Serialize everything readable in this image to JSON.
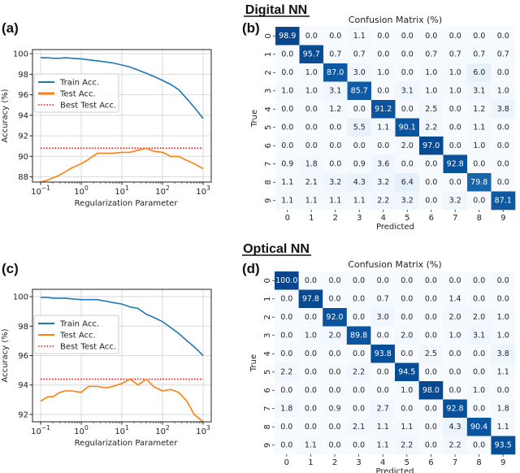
{
  "sections": [
    {
      "title": "Digital NN"
    },
    {
      "title": "Optical NN"
    }
  ],
  "chart_data": [
    {
      "panel": "(a)",
      "type": "line",
      "xscale": "log",
      "xlabel": "Regularization Parameter",
      "ylabel": "Accuracy (%)",
      "xlim": [
        0.1,
        1000
      ],
      "ylim": [
        87.5,
        100.4
      ],
      "xticks": [
        "10^-1",
        "10^0",
        "10^1",
        "10^2",
        "10^3"
      ],
      "yticks": [
        88,
        90,
        92,
        94,
        96,
        98,
        100
      ],
      "grid": true,
      "legend": "upper-left",
      "colors": {
        "train": "#1f77b4",
        "test": "#ff7f0e",
        "best": "#ff0000"
      },
      "x": [
        0.1,
        0.15,
        0.2,
        0.3,
        0.4,
        0.6,
        1,
        1.5,
        2.5,
        4,
        6,
        10,
        16,
        25,
        40,
        60,
        100,
        160,
        250,
        400,
        600,
        1000
      ],
      "series": [
        {
          "name": "Train Acc.",
          "values": [
            99.6,
            99.6,
            99.55,
            99.55,
            99.6,
            99.55,
            99.5,
            99.4,
            99.3,
            99.2,
            99.1,
            98.9,
            98.7,
            98.4,
            98.1,
            97.8,
            97.4,
            97.0,
            96.5,
            95.6,
            94.8,
            93.7
          ]
        },
        {
          "name": "Test Acc.",
          "values": [
            87.5,
            87.7,
            87.9,
            88.2,
            88.5,
            88.9,
            89.3,
            89.7,
            90.3,
            90.3,
            90.3,
            90.4,
            90.4,
            90.6,
            90.8,
            90.5,
            90.4,
            90.0,
            90.0,
            89.6,
            89.3,
            88.8
          ]
        },
        {
          "name": "Best Test Acc.",
          "style": "dotted",
          "constant": 90.8
        }
      ]
    },
    {
      "panel": "(b)",
      "type": "heatmap",
      "title": "Confusion Matrix (%)",
      "xlabel": "Predicted",
      "ylabel": "True",
      "labels": [
        "0",
        "1",
        "2",
        "3",
        "4",
        "5",
        "6",
        "7",
        "8",
        "9"
      ],
      "colormap": "Blues",
      "matrix": [
        [
          98.9,
          0.0,
          0.0,
          1.1,
          0.0,
          0.0,
          0.0,
          0.0,
          0.0,
          0.0
        ],
        [
          0.0,
          95.7,
          0.7,
          0.7,
          0.0,
          0.0,
          0.7,
          0.7,
          0.7,
          0.7
        ],
        [
          0.0,
          1.0,
          87.0,
          3.0,
          1.0,
          0.0,
          1.0,
          1.0,
          6.0,
          0.0
        ],
        [
          1.0,
          1.0,
          3.1,
          85.7,
          0.0,
          3.1,
          1.0,
          1.0,
          3.1,
          1.0
        ],
        [
          0.0,
          0.0,
          1.2,
          0.0,
          91.2,
          0.0,
          2.5,
          0.0,
          1.2,
          3.8
        ],
        [
          0.0,
          0.0,
          0.0,
          5.5,
          1.1,
          90.1,
          2.2,
          0.0,
          1.1,
          0.0
        ],
        [
          0.0,
          0.0,
          0.0,
          0.0,
          0.0,
          2.0,
          97.0,
          0.0,
          1.0,
          0.0
        ],
        [
          0.9,
          1.8,
          0.0,
          0.9,
          3.6,
          0.0,
          0.0,
          92.8,
          0.0,
          0.0
        ],
        [
          1.1,
          2.1,
          3.2,
          4.3,
          3.2,
          6.4,
          0.0,
          0.0,
          79.8,
          0.0
        ],
        [
          1.1,
          1.1,
          1.1,
          1.1,
          2.2,
          3.2,
          0.0,
          3.2,
          0.0,
          87.1
        ]
      ]
    },
    {
      "panel": "(c)",
      "type": "line",
      "xscale": "log",
      "xlabel": "Regularization Parameter",
      "ylabel": "Accuracy (%)",
      "xlim": [
        0.1,
        1000
      ],
      "ylim": [
        91.5,
        100.5
      ],
      "xticks": [
        "10^-1",
        "10^0",
        "10^1",
        "10^2",
        "10^3"
      ],
      "yticks": [
        92,
        94,
        96,
        98,
        100
      ],
      "grid": true,
      "legend": "upper-left",
      "colors": {
        "train": "#1f77b4",
        "test": "#ff7f0e",
        "best": "#ff0000"
      },
      "x": [
        0.1,
        0.15,
        0.2,
        0.3,
        0.4,
        0.6,
        1,
        1.5,
        2.5,
        4,
        6,
        10,
        16,
        25,
        40,
        60,
        100,
        160,
        250,
        400,
        600,
        1000
      ],
      "series": [
        {
          "name": "Train Acc.",
          "values": [
            99.95,
            99.95,
            99.9,
            99.9,
            99.9,
            99.85,
            99.8,
            99.8,
            99.8,
            99.7,
            99.6,
            99.5,
            99.3,
            99.2,
            98.8,
            98.6,
            98.3,
            97.9,
            97.5,
            97.0,
            96.6,
            96.0
          ]
        },
        {
          "name": "Test Acc.",
          "values": [
            92.9,
            93.2,
            93.2,
            93.5,
            93.6,
            93.6,
            93.5,
            93.9,
            93.9,
            93.8,
            93.9,
            94.1,
            94.4,
            94.0,
            94.4,
            93.9,
            93.6,
            93.7,
            93.5,
            92.9,
            92.0,
            91.5
          ]
        },
        {
          "name": "Best Test Acc.",
          "style": "dotted",
          "constant": 94.4
        }
      ]
    },
    {
      "panel": "(d)",
      "type": "heatmap",
      "title": "Confusion Matrix (%)",
      "xlabel": "Predicted",
      "ylabel": "True",
      "labels": [
        "0",
        "1",
        "2",
        "3",
        "4",
        "5",
        "6",
        "7",
        "8",
        "9"
      ],
      "colormap": "Blues",
      "matrix": [
        [
          100.0,
          0.0,
          0.0,
          0.0,
          0.0,
          0.0,
          0.0,
          0.0,
          0.0,
          0.0
        ],
        [
          0.0,
          97.8,
          0.0,
          0.0,
          0.7,
          0.0,
          0.0,
          1.4,
          0.0,
          0.0
        ],
        [
          0.0,
          0.0,
          92.0,
          0.0,
          3.0,
          0.0,
          0.0,
          2.0,
          2.0,
          1.0
        ],
        [
          0.0,
          1.0,
          2.0,
          89.8,
          0.0,
          2.0,
          0.0,
          1.0,
          3.1,
          1.0
        ],
        [
          0.0,
          0.0,
          0.0,
          0.0,
          93.8,
          0.0,
          2.5,
          0.0,
          0.0,
          3.8
        ],
        [
          2.2,
          0.0,
          0.0,
          2.2,
          0.0,
          94.5,
          0.0,
          0.0,
          0.0,
          1.1
        ],
        [
          0.0,
          0.0,
          0.0,
          0.0,
          0.0,
          1.0,
          98.0,
          0.0,
          1.0,
          0.0
        ],
        [
          1.8,
          0.0,
          0.9,
          0.0,
          2.7,
          0.0,
          0.0,
          92.8,
          0.0,
          1.8
        ],
        [
          0.0,
          0.0,
          0.0,
          2.1,
          1.1,
          1.1,
          0.0,
          4.3,
          90.4,
          1.1
        ],
        [
          0.0,
          1.1,
          0.0,
          0.0,
          1.1,
          2.2,
          0.0,
          2.2,
          0.0,
          93.5
        ]
      ]
    }
  ]
}
